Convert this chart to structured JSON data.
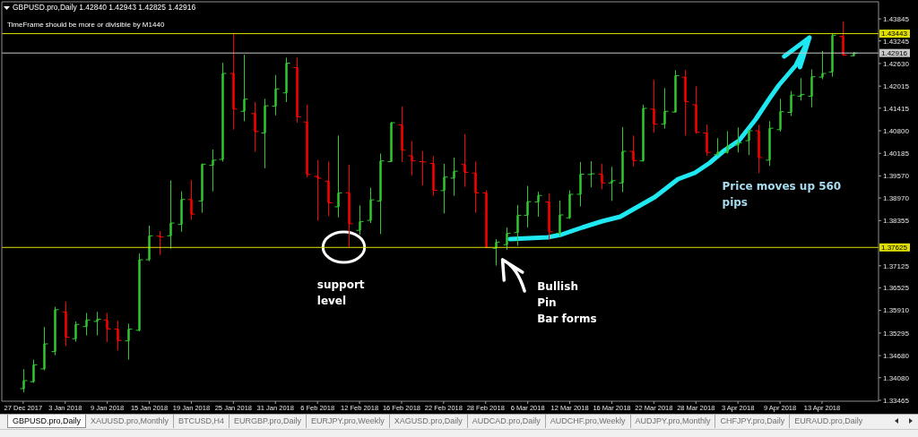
{
  "chart_data": {
    "type": "candlestick",
    "title": "GBPUSD.pro,Daily 1.42840 1.42943 1.42825 1.42916",
    "subtitle": "TimeFrame should be more or divisible by M1440",
    "categories": [
      "27 Dec 2017",
      null,
      null,
      null,
      "3 Jan 2018",
      null,
      null,
      null,
      "9 Jan 2018",
      null,
      null,
      null,
      "15 Jan 2018",
      null,
      null,
      null,
      "19 Jan 2018",
      null,
      null,
      null,
      "25 Jan 2018",
      null,
      null,
      null,
      "31 Jan 2018",
      null,
      null,
      null,
      "6 Feb 2018",
      null,
      null,
      null,
      "12 Feb 2018",
      null,
      null,
      null,
      "16 Feb 2018",
      null,
      null,
      null,
      "22 Feb 2018",
      null,
      null,
      null,
      "28 Feb 2018",
      null,
      null,
      null,
      "6 Mar 2018",
      null,
      null,
      null,
      "12 Mar 2018",
      null,
      null,
      null,
      "16 Mar 2018",
      null,
      null,
      null,
      "22 Mar 2018",
      null,
      null,
      null,
      "28 Mar 2018",
      null,
      null,
      null,
      "3 Apr 2018",
      null,
      null,
      null,
      "9 Apr 2018",
      null,
      null,
      null,
      "13 Apr 2018",
      null,
      null,
      null
    ],
    "ohlc": [
      [
        1.3378,
        1.3431,
        1.3368,
        1.34
      ],
      [
        1.3397,
        1.3457,
        1.3394,
        1.3443
      ],
      [
        1.3432,
        1.3546,
        1.3428,
        1.35
      ],
      [
        1.3479,
        1.3601,
        1.3469,
        1.3593
      ],
      [
        1.3587,
        1.3615,
        1.3494,
        1.3518
      ],
      [
        1.3514,
        1.3561,
        1.3506,
        1.3553
      ],
      [
        1.3547,
        1.3584,
        1.3523,
        1.3565
      ],
      [
        1.3561,
        1.3587,
        1.3523,
        1.3567
      ],
      [
        1.3565,
        1.3584,
        1.3505,
        1.354
      ],
      [
        1.354,
        1.3563,
        1.3482,
        1.3509
      ],
      [
        1.3508,
        1.3555,
        1.3457,
        1.354
      ],
      [
        1.3537,
        1.3746,
        1.3534,
        1.3729
      ],
      [
        1.3729,
        1.3822,
        1.3725,
        1.3794
      ],
      [
        1.3793,
        1.3807,
        1.3742,
        1.3791
      ],
      [
        1.3794,
        1.3945,
        1.3759,
        1.3829
      ],
      [
        1.3825,
        1.3915,
        1.3805,
        1.3893
      ],
      [
        1.3893,
        1.3946,
        1.3838,
        1.3853
      ],
      [
        1.3889,
        1.3991,
        1.3857,
        1.3989
      ],
      [
        1.3986,
        1.4029,
        1.3915,
        1.4
      ],
      [
        1.4002,
        1.4265,
        1.3996,
        1.4236
      ],
      [
        1.4236,
        1.4344,
        1.4083,
        1.4139
      ],
      [
        1.4133,
        1.4287,
        1.4106,
        1.4166
      ],
      [
        1.4127,
        1.4158,
        1.4023,
        1.4078
      ],
      [
        1.4074,
        1.4167,
        1.3978,
        1.4148
      ],
      [
        1.4147,
        1.4232,
        1.4122,
        1.4194
      ],
      [
        1.4183,
        1.4279,
        1.4158,
        1.4264
      ],
      [
        1.4252,
        1.4279,
        1.4102,
        1.4118
      ],
      [
        1.4104,
        1.4151,
        1.3953,
        1.3961
      ],
      [
        1.3956,
        1.4,
        1.3835,
        1.3951
      ],
      [
        1.3943,
        1.3996,
        1.3848,
        1.3884
      ],
      [
        1.3873,
        1.4067,
        1.3844,
        1.3911
      ],
      [
        1.3911,
        1.3988,
        1.3764,
        1.3827
      ],
      [
        1.3809,
        1.3877,
        1.3797,
        1.3833
      ],
      [
        1.3836,
        1.3925,
        1.3829,
        1.3892
      ],
      [
        1.3889,
        1.4018,
        1.3799,
        1.3998
      ],
      [
        1.3996,
        1.4104,
        1.3995,
        1.4102
      ],
      [
        1.4096,
        1.4146,
        1.3995,
        1.4027
      ],
      [
        1.4012,
        1.4052,
        1.3959,
        1.3998
      ],
      [
        1.3996,
        1.4025,
        1.3931,
        1.3995
      ],
      [
        1.3991,
        1.4011,
        1.3903,
        1.3918
      ],
      [
        1.3917,
        1.399,
        1.3855,
        1.3954
      ],
      [
        1.3951,
        1.4007,
        1.3903,
        1.397
      ],
      [
        1.3988,
        1.4071,
        1.3927,
        1.3967
      ],
      [
        1.3965,
        1.3996,
        1.3857,
        1.3911
      ],
      [
        1.3911,
        1.3918,
        1.376,
        1.3762
      ],
      [
        1.376,
        1.3785,
        1.3713,
        1.3777
      ],
      [
        1.377,
        1.3817,
        1.3756,
        1.3801
      ],
      [
        1.3803,
        1.3878,
        1.3767,
        1.385
      ],
      [
        1.385,
        1.393,
        1.3817,
        1.3887
      ],
      [
        1.3886,
        1.3914,
        1.3846,
        1.3904
      ],
      [
        1.3886,
        1.391,
        1.3783,
        1.3805
      ],
      [
        1.3801,
        1.389,
        1.3793,
        1.3851
      ],
      [
        1.3843,
        1.3918,
        1.384,
        1.3907
      ],
      [
        1.3907,
        1.3995,
        1.3874,
        1.3962
      ],
      [
        1.3961,
        1.3997,
        1.3926,
        1.3963
      ],
      [
        1.3962,
        1.399,
        1.3921,
        1.3938
      ],
      [
        1.3938,
        1.3982,
        1.3889,
        1.3944
      ],
      [
        1.3938,
        1.409,
        1.3913,
        1.4024
      ],
      [
        1.4024,
        1.4067,
        1.3983,
        1.3999
      ],
      [
        1.3998,
        1.4151,
        1.3996,
        1.4141
      ],
      [
        1.4139,
        1.4219,
        1.4075,
        1.4098
      ],
      [
        1.4098,
        1.4196,
        1.4086,
        1.4133
      ],
      [
        1.4131,
        1.4245,
        1.4129,
        1.423
      ],
      [
        1.4226,
        1.4245,
        1.4067,
        1.4159
      ],
      [
        1.4151,
        1.4201,
        1.4072,
        1.4076
      ],
      [
        1.4074,
        1.4097,
        1.4012,
        1.4021
      ],
      [
        1.4015,
        1.406,
        1.4012,
        1.4022
      ],
      [
        1.4021,
        1.4079,
        1.4018,
        1.4039
      ],
      [
        1.4041,
        1.4089,
        1.4021,
        1.4047
      ],
      [
        1.4053,
        1.4083,
        1.4014,
        1.408
      ],
      [
        1.408,
        1.4096,
        1.3965,
        1.4007
      ],
      [
        1.4,
        1.4106,
        1.3984,
        1.4087
      ],
      [
        1.4083,
        1.4167,
        1.4078,
        1.4132
      ],
      [
        1.413,
        1.4188,
        1.412,
        1.4177
      ],
      [
        1.4174,
        1.4223,
        1.4162,
        1.4179
      ],
      [
        1.4174,
        1.4247,
        1.4144,
        1.4227
      ],
      [
        1.4226,
        1.4297,
        1.422,
        1.4236
      ],
      [
        1.424,
        1.4344,
        1.4227,
        1.434
      ],
      [
        1.4337,
        1.4377,
        1.4284,
        1.4286
      ],
      [
        1.4284,
        1.42943,
        1.42825,
        1.42916
      ]
    ],
    "colors": [
      "#32c832",
      "#32c832",
      "#32c832",
      "#32c832",
      "#ff0000",
      "#32c832",
      "#32c832",
      "#32c832",
      "#ff0000",
      "#ff0000",
      "#32c832",
      "#32c832",
      "#32c832",
      "#ff0000",
      "#32c832",
      "#32c832",
      "#ff0000",
      "#32c832",
      "#32c832",
      "#32c832",
      "#ff0000",
      "#32c832",
      "#ff0000",
      "#32c832",
      "#32c832",
      "#32c832",
      "#ff0000",
      "#ff0000",
      "#ff0000",
      "#ff0000",
      "#32c832",
      "#ff0000",
      "#32c832",
      "#32c832",
      "#32c832",
      "#32c832",
      "#ff0000",
      "#ff0000",
      "#ff0000",
      "#ff0000",
      "#32c832",
      "#32c832",
      "#ff0000",
      "#ff0000",
      "#ff0000",
      "#32c832",
      "#32c832",
      "#32c832",
      "#32c832",
      "#32c832",
      "#ff0000",
      "#32c832",
      "#32c832",
      "#32c832",
      "#32c832",
      "#ff0000",
      "#32c832",
      "#32c832",
      "#ff0000",
      "#32c832",
      "#ff0000",
      "#32c832",
      "#32c832",
      "#ff0000",
      "#ff0000",
      "#ff0000",
      "#32c832",
      "#32c832",
      "#32c832",
      "#32c832",
      "#ff0000",
      "#32c832",
      "#32c832",
      "#32c832",
      "#32c832",
      "#32c832",
      "#32c832",
      "#32c832",
      "#ff0000",
      "#32c832"
    ],
    "ylim": [
      1.3344,
      1.4431
    ],
    "yticks": [
      1.33465,
      {
        "value": 1.3408,
        "label": "1.34080"
      },
      {
        "value": 1.3468,
        "label": "1.34680"
      },
      1.35295,
      {
        "value": 1.3591,
        "label": "1.35910"
      },
      1.36525,
      1.37125,
      1.38355,
      {
        "value": 1.3897,
        "label": "1.38970"
      },
      {
        "value": 1.3957,
        "label": "1.39570"
      },
      1.40185,
      {
        "value": 1.408,
        "label": "1.40800"
      },
      1.41415,
      1.42015,
      {
        "value": 1.4263,
        "label": "1.42630"
      },
      1.43245,
      1.43845
    ],
    "ref_lines": [
      {
        "axis": "y",
        "value": 1.43443,
        "label": "1.43443",
        "color": "#e0e000"
      },
      {
        "axis": "y",
        "value": 1.42916,
        "label": "1.42916",
        "color": "#c8c8c8"
      },
      {
        "axis": "y",
        "value": 1.37625,
        "label": "1.37625",
        "color": "#e0e000"
      }
    ],
    "annotations": [
      "support\nlevel",
      "Bullish\nPin\nBar forms",
      "Price moves up 560\npips",
      "GBPUSD.pro,Daily",
      "XAUUSD.pro,Monthly",
      "BTCUSD,H4",
      "EURGBP.pro,Daily",
      "EURJPY.pro,Weekly",
      "XAGUSD.pro,Daily",
      "AUDCAD.pro,Daily",
      "AUDCHF.pro,Weekly",
      "AUDJPY.pro,Monthly",
      "CHFJPY.pro,Daily",
      "EURAUD.pro,Daily"
    ]
  }
}
